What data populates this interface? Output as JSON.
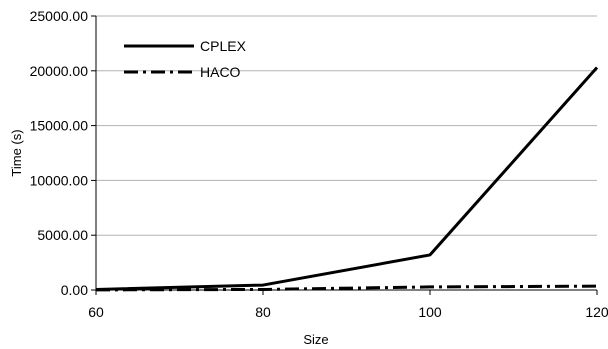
{
  "chart_data": {
    "type": "line",
    "x": [
      60,
      80,
      100,
      120
    ],
    "series": [
      {
        "name": "CPLEX",
        "values": [
          50,
          450,
          3200,
          20300
        ],
        "color": "#000000",
        "dash": "solid"
      },
      {
        "name": "HACO",
        "values": [
          10,
          50,
          280,
          350
        ],
        "color": "#000000",
        "dash": "dash-dot"
      }
    ],
    "x_ticks": [
      60,
      80,
      100,
      120
    ],
    "y_ticks": [
      "0.00",
      "5000.00",
      "10000.00",
      "15000.00",
      "20000.00",
      "25000.00"
    ],
    "xlabel": "Size",
    "ylabel": "Time (s)",
    "xlim": [
      60,
      120
    ],
    "ylim": [
      0,
      25000
    ],
    "grid": "horizontal",
    "legend": "top-left"
  }
}
